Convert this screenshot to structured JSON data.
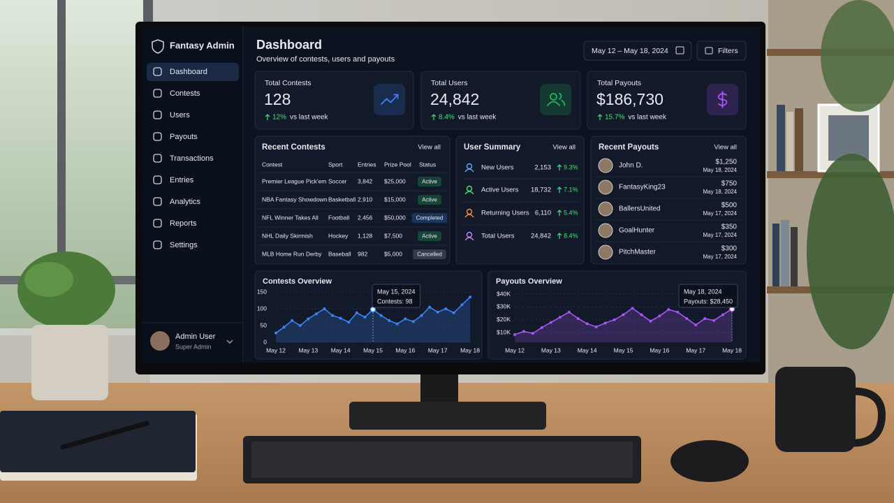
{
  "sidebar": {
    "brand": "Fantasy Admin",
    "nav": [
      "Dashboard",
      "Contests",
      "Users",
      "Payouts",
      "Transactions",
      "Entries",
      "Analytics",
      "Reports",
      "Settings"
    ],
    "active": 0,
    "user": {
      "name": "Admin User",
      "role": "Super Admin"
    }
  },
  "header": {
    "title": "Dashboard",
    "subtitle": "Overview of contests, users and payouts",
    "date_range": "May 12 – May 18, 2024",
    "filters": "Filters"
  },
  "stats": [
    {
      "label": "Total Contests",
      "value": "128",
      "change": "12%",
      "note": "vs last week",
      "color": "#3b82f6"
    },
    {
      "label": "Total Users",
      "value": "24,842",
      "change": "8.4%",
      "note": "vs last week",
      "color": "#22c55e"
    },
    {
      "label": "Total Payouts",
      "value": "$186,730",
      "change": "15.7%",
      "note": "vs last week",
      "color": "#a855f7"
    }
  ],
  "recent_contests": {
    "title": "Recent Contests",
    "link": "View all",
    "columns": [
      "Contest",
      "Sport",
      "Entries",
      "Prize Pool",
      "Status"
    ],
    "rows": [
      [
        "Premier League Pick'em",
        "Soccer",
        "3,842",
        "$25,000",
        {
          "label": "Active",
          "color": "#22c55e"
        }
      ],
      [
        "NBA Fantasy Showdown",
        "Basketball",
        "2,910",
        "$15,000",
        {
          "label": "Active",
          "color": "#22c55e"
        }
      ],
      [
        "NFL Winner Takes All",
        "Football",
        "2,456",
        "$50,000",
        {
          "label": "Completed",
          "color": "#3b82f6"
        }
      ],
      [
        "NHL Daily Skirmish",
        "Hockey",
        "1,128",
        "$7,500",
        {
          "label": "Active",
          "color": "#22c55e"
        }
      ],
      [
        "MLB Home Run Derby",
        "Baseball",
        "982",
        "$5,000",
        {
          "label": "Cancelled",
          "color": "#9ca3af"
        }
      ]
    ]
  },
  "user_summary": {
    "title": "User Summary",
    "link": "View all",
    "rows": [
      {
        "label": "New Users",
        "value": "2,153",
        "change": "9.3%",
        "color": "#60a5fa"
      },
      {
        "label": "Active Users",
        "value": "18,732",
        "change": "7.1%",
        "color": "#4ade80"
      },
      {
        "label": "Returning Users",
        "value": "6,110",
        "change": "5.4%",
        "color": "#fb923c"
      },
      {
        "label": "Total Users",
        "value": "24,842",
        "change": "8.4%",
        "color": "#c084fc"
      }
    ]
  },
  "recent_payouts": {
    "title": "Recent Payouts",
    "link": "View all",
    "rows": [
      {
        "name": "John D.",
        "amount": "$1,250",
        "date": "May 18, 2024"
      },
      {
        "name": "FantasyKing23",
        "amount": "$750",
        "date": "May 18, 2024"
      },
      {
        "name": "BallersUnited",
        "amount": "$500",
        "date": "May 17, 2024"
      },
      {
        "name": "GoalHunter",
        "amount": "$350",
        "date": "May 17, 2024"
      },
      {
        "name": "PitchMaster",
        "amount": "$300",
        "date": "May 17, 2024"
      }
    ]
  },
  "chart_data": [
    {
      "type": "line",
      "title": "Contests Overview",
      "categories": [
        "May 12",
        null,
        null,
        null,
        "May 13",
        null,
        null,
        null,
        "May 14",
        null,
        null,
        null,
        "May 15",
        null,
        null,
        null,
        "May 16",
        null,
        null,
        null,
        "May 17",
        null,
        null,
        null,
        "May 18"
      ],
      "values": [
        28,
        45,
        65,
        50,
        70,
        85,
        100,
        80,
        72,
        60,
        88,
        75,
        98,
        80,
        65,
        55,
        70,
        62,
        80,
        105,
        90,
        100,
        88,
        112,
        135
      ],
      "ylim": [
        0,
        150
      ],
      "yticks": [
        0,
        50,
        100,
        150
      ],
      "color": "#3b82f6",
      "highlight": 12,
      "tooltip": {
        "title": "May 15, 2024",
        "text": "Contests: 98"
      }
    },
    {
      "type": "line",
      "title": "Payouts Overview",
      "categories": [
        "May 12",
        null,
        null,
        null,
        "May 13",
        null,
        null,
        null,
        "May 14",
        null,
        null,
        null,
        "May 15",
        null,
        null,
        null,
        "May 16",
        null,
        null,
        null,
        "May 17",
        null,
        null,
        null,
        "May 18"
      ],
      "values": [
        8500,
        11000,
        9500,
        14000,
        18000,
        22000,
        26000,
        21000,
        17000,
        14500,
        17500,
        20000,
        24000,
        29000,
        24000,
        19000,
        23000,
        28000,
        26000,
        21000,
        16000,
        21000,
        19500,
        24000,
        28450
      ],
      "ylim": [
        2500,
        40000
      ],
      "yticks": [
        {
          "value": 10000,
          "label": "$10K"
        },
        {
          "value": 20000,
          "label": "$20K"
        },
        {
          "value": 30000,
          "label": "$30K"
        },
        {
          "value": 40000,
          "label": "$40K"
        }
      ],
      "color": "#a855f7",
      "highlight": 24,
      "tooltip": {
        "title": "May 18, 2024",
        "text": "Payouts: $28,450"
      }
    }
  ]
}
